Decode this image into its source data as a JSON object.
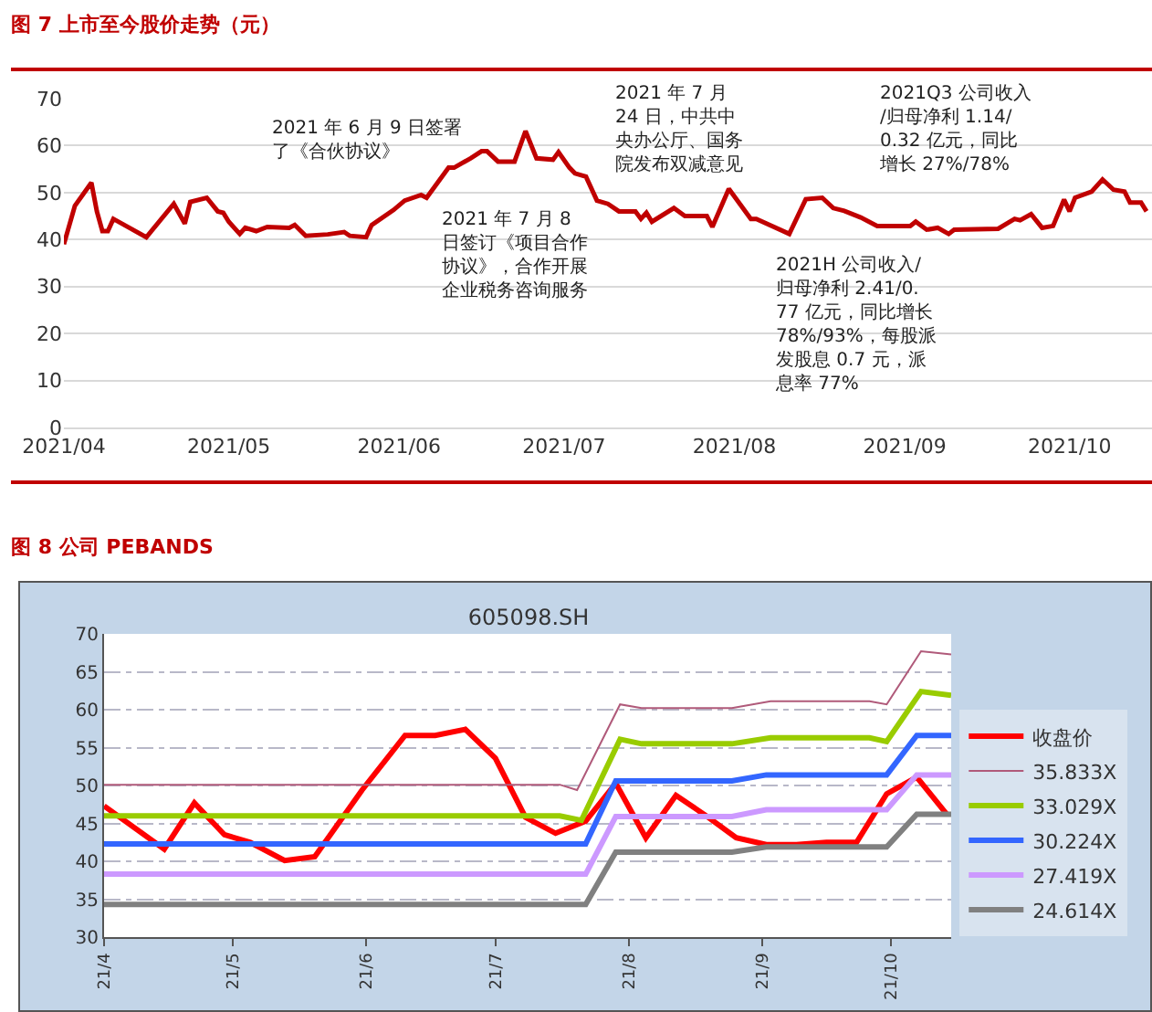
{
  "chart_data": [
    {
      "type": "line",
      "title": "图 7 上市至今股价走势（元）",
      "x": [
        "2021-04-01",
        "2021-04-03",
        "2021-04-06",
        "2021-04-07",
        "2021-04-08",
        "2021-04-09",
        "2021-04-10",
        "2021-04-16",
        "2021-04-21",
        "2021-04-23",
        "2021-04-24",
        "2021-04-27",
        "2021-04-29",
        "2021-04-30",
        "2021-05-01",
        "2021-05-03",
        "2021-05-04",
        "2021-05-06",
        "2021-05-08",
        "2021-05-12",
        "2021-05-13",
        "2021-05-15",
        "2021-05-19",
        "2021-05-22",
        "2021-05-23",
        "2021-05-26",
        "2021-05-27",
        "2021-05-31",
        "2021-06-02",
        "2021-06-05",
        "2021-06-06",
        "2021-06-10",
        "2021-06-11",
        "2021-06-14",
        "2021-06-16",
        "2021-06-17",
        "2021-06-19",
        "2021-06-22",
        "2021-06-24",
        "2021-06-26",
        "2021-06-29",
        "2021-06-30",
        "2021-07-02",
        "2021-07-03",
        "2021-07-05",
        "2021-07-07",
        "2021-07-09",
        "2021-07-11",
        "2021-07-14",
        "2021-07-15",
        "2021-07-16",
        "2021-07-17",
        "2021-07-21",
        "2021-07-23",
        "2021-07-27",
        "2021-07-28",
        "2021-07-31",
        "2021-08-04",
        "2021-08-05",
        "2021-08-11",
        "2021-08-14",
        "2021-08-17",
        "2021-08-19",
        "2021-08-21",
        "2021-08-24",
        "2021-08-27",
        "2021-09-02",
        "2021-09-03",
        "2021-09-05",
        "2021-09-07",
        "2021-09-09",
        "2021-09-10",
        "2021-09-18",
        "2021-09-21",
        "2021-09-22",
        "2021-09-24",
        "2021-09-26",
        "2021-09-28",
        "2021-09-30",
        "2021-10-01",
        "2021-10-02",
        "2021-10-05",
        "2021-10-07",
        "2021-10-09",
        "2021-10-11",
        "2021-10-12",
        "2021-10-14",
        "2021-10-15"
      ],
      "series": [
        {
          "color": "#c00000",
          "values": [
            39.0,
            47.2,
            52.1,
            46.0,
            41.8,
            41.8,
            44.4,
            40.5,
            47.6,
            43.4,
            48.0,
            48.9,
            46.0,
            45.7,
            43.8,
            41.2,
            42.5,
            41.8,
            42.7,
            42.5,
            43.1,
            40.8,
            41.1,
            41.6,
            40.8,
            40.5,
            43.1,
            46.3,
            48.3,
            49.5,
            48.9,
            55.3,
            55.3,
            57.3,
            58.8,
            58.8,
            56.6,
            56.6,
            63.1,
            57.3,
            57.0,
            58.6,
            55.3,
            54.1,
            53.4,
            48.3,
            47.6,
            46.0,
            46.0,
            44.4,
            45.7,
            43.8,
            46.7,
            45.0,
            45.0,
            42.7,
            50.8,
            44.4,
            44.4,
            41.2,
            48.6,
            48.9,
            46.7,
            46.1,
            44.7,
            42.9,
            42.9,
            43.8,
            42.1,
            42.5,
            41.2,
            42.1,
            42.3,
            44.4,
            44.1,
            45.4,
            42.5,
            42.9,
            48.5,
            46.0,
            48.9,
            50.2,
            52.8,
            50.6,
            50.2,
            47.9,
            47.9,
            46.0
          ]
        }
      ],
      "xlim": [
        "2021-04-01",
        "2021-10-16"
      ],
      "xticks": [
        {
          "value": "2021-04-01",
          "label": "2021/04"
        },
        {
          "value": "2021-05-01",
          "label": "2021/05"
        },
        {
          "value": "2021-06-01",
          "label": "2021/06"
        },
        {
          "value": "2021-07-01",
          "label": "2021/07"
        },
        {
          "value": "2021-08-01",
          "label": "2021/08"
        },
        {
          "value": "2021-09-01",
          "label": "2021/09"
        },
        {
          "value": "2021-10-01",
          "label": "2021/10"
        }
      ],
      "ylim": [
        0,
        70
      ],
      "yticks": [
        0,
        10,
        20,
        30,
        40,
        50,
        60,
        70
      ],
      "grid": "y",
      "annotations": [
        "2021 年 6 月 9 日签署了《合伙协议》",
        "2021 年 7 月 8 日签订《项目合作协议》，合作开展企业税务咨询服务",
        "2021 年 7 月 24 日，中共中央办公厅、国务院发布双减意见",
        "2021H 公司收入/归母净利 2.41/0.77 亿元，同比增长 78%/93%，每股派发股息 0.7 元，派息率 77%",
        "2021Q3 公司收入/归母净利 1.14/0.32 亿元，同比增长 27%/78%"
      ]
    },
    {
      "type": "line",
      "title": "图 8 公司 PEBANDS",
      "subtitle": "605098.SH",
      "series": [
        {
          "name": "收盘价",
          "color": "#ff0000",
          "x": [
            "2021-04-01",
            "2021-04-15",
            "2021-04-22",
            "2021-04-29",
            "2021-05-05",
            "2021-05-13",
            "2021-05-20",
            "2021-05-31",
            "2021-06-10",
            "2021-06-17",
            "2021-06-24",
            "2021-07-01",
            "2021-07-08",
            "2021-07-15",
            "2021-07-22",
            "2021-07-29",
            "2021-08-05",
            "2021-08-12",
            "2021-08-19",
            "2021-08-26",
            "2021-09-02",
            "2021-09-09",
            "2021-09-16",
            "2021-09-23",
            "2021-09-30",
            "2021-10-07",
            "2021-10-14"
          ],
          "values": [
            47.3,
            41.6,
            47.7,
            43.5,
            42.5,
            40.1,
            40.6,
            49.4,
            56.6,
            56.6,
            57.4,
            53.6,
            45.8,
            43.7,
            45.3,
            50.3,
            43.1,
            48.7,
            46.0,
            43.1,
            42.2,
            42.2,
            42.5,
            42.5,
            48.9,
            51.1,
            46.2
          ]
        },
        {
          "name": "35.833X",
          "color": "#b05a7a",
          "x": [
            "2021-04-01",
            "2021-07-16",
            "2021-07-20",
            "2021-07-30",
            "2021-08-04",
            "2021-08-25",
            "2021-09-03",
            "2021-09-26",
            "2021-09-30",
            "2021-10-08",
            "2021-10-15"
          ],
          "values": [
            50.1,
            50.1,
            49.4,
            60.7,
            60.2,
            60.2,
            61.1,
            61.1,
            60.7,
            67.7,
            67.3
          ]
        },
        {
          "name": "33.029X",
          "color": "#99cc00",
          "x": [
            "2021-04-01",
            "2021-07-16",
            "2021-07-21",
            "2021-07-30",
            "2021-08-04",
            "2021-08-25",
            "2021-09-03",
            "2021-09-26",
            "2021-09-30",
            "2021-10-08",
            "2021-10-15"
          ],
          "values": [
            46.0,
            46.0,
            45.4,
            56.1,
            55.5,
            55.5,
            56.3,
            56.3,
            55.8,
            62.4,
            61.9
          ]
        },
        {
          "name": "30.224X",
          "color": "#3366ff",
          "x": [
            "2021-04-01",
            "2021-07-22",
            "2021-07-29",
            "2021-08-25",
            "2021-09-02",
            "2021-09-30",
            "2021-10-07",
            "2021-10-15"
          ],
          "values": [
            42.3,
            42.3,
            50.6,
            50.6,
            51.4,
            51.4,
            56.6,
            56.6
          ]
        },
        {
          "name": "27.419X",
          "color": "#cc99ff",
          "x": [
            "2021-04-01",
            "2021-07-22",
            "2021-07-29",
            "2021-08-25",
            "2021-09-02",
            "2021-09-30",
            "2021-10-07",
            "2021-10-15"
          ],
          "values": [
            38.3,
            38.3,
            45.9,
            45.9,
            46.8,
            46.8,
            51.4,
            51.4
          ]
        },
        {
          "name": "24.614X",
          "color": "#808080",
          "x": [
            "2021-04-01",
            "2021-07-22",
            "2021-07-29",
            "2021-08-25",
            "2021-09-02",
            "2021-09-30",
            "2021-10-07",
            "2021-10-15"
          ],
          "values": [
            34.3,
            34.3,
            41.2,
            41.2,
            41.9,
            41.9,
            46.2,
            46.2
          ]
        }
      ],
      "xlim": [
        "2021-04-01",
        "2021-10-15"
      ],
      "xticks": [
        {
          "value": "2021-04-01",
          "label": "21/4"
        },
        {
          "value": "2021-05-01",
          "label": "21/5"
        },
        {
          "value": "2021-06-01",
          "label": "21/6"
        },
        {
          "value": "2021-07-01",
          "label": "21/7"
        },
        {
          "value": "2021-08-01",
          "label": "21/8"
        },
        {
          "value": "2021-09-01",
          "label": "21/9"
        },
        {
          "value": "2021-10-01",
          "label": "21/10"
        }
      ],
      "ylim": [
        30,
        70
      ],
      "yticks": [
        30,
        35,
        40,
        45,
        50,
        55,
        60,
        65,
        70
      ],
      "grid": "y",
      "legend": "right"
    }
  ]
}
